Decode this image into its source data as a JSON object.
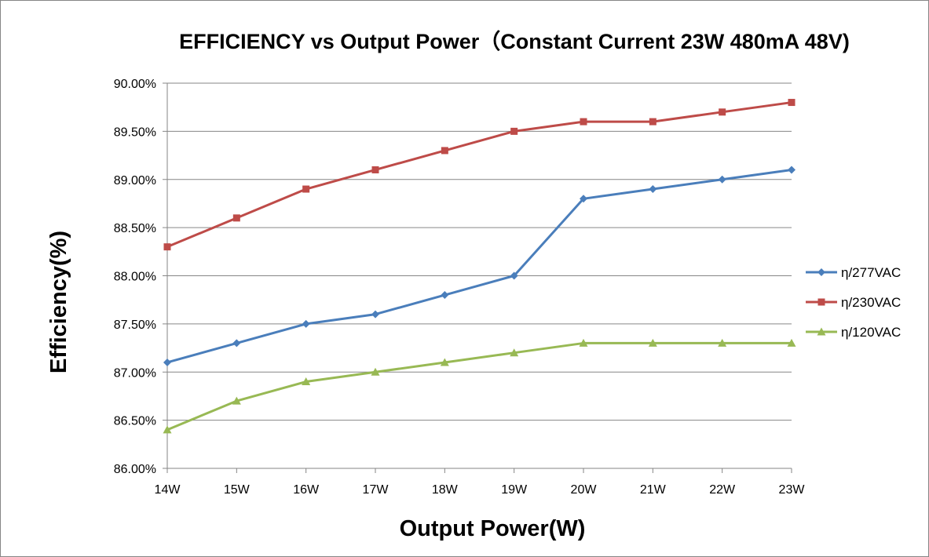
{
  "chart_data": {
    "type": "line",
    "title": "EFFICIENCY vs Output Power（Constant Current 23W 480mA 48V)",
    "xlabel": "Output Power(W)",
    "ylabel": "Efficiency(%)",
    "categories": [
      "14W",
      "15W",
      "16W",
      "17W",
      "18W",
      "19W",
      "20W",
      "21W",
      "22W",
      "23W"
    ],
    "ylim": [
      86.0,
      90.0
    ],
    "yticks": [
      86.0,
      86.5,
      87.0,
      87.5,
      88.0,
      88.5,
      89.0,
      89.5,
      90.0
    ],
    "ytick_labels": [
      "86.00%",
      "86.50%",
      "87.00%",
      "87.50%",
      "88.00%",
      "88.50%",
      "89.00%",
      "89.50%",
      "90.00%"
    ],
    "grid": "horizontal",
    "legend_position": "right",
    "series": [
      {
        "name": "η/277VAC",
        "color": "#4A7EBB",
        "marker": "diamond",
        "values": [
          87.1,
          87.3,
          87.5,
          87.6,
          87.8,
          88.0,
          88.8,
          88.9,
          89.0,
          89.1
        ]
      },
      {
        "name": "η/230VAC",
        "color": "#BE4B48",
        "marker": "square",
        "values": [
          88.3,
          88.6,
          88.9,
          89.1,
          89.3,
          89.5,
          89.6,
          89.6,
          89.7,
          89.8
        ]
      },
      {
        "name": "η/120VAC",
        "color": "#98B954",
        "marker": "triangle",
        "values": [
          86.4,
          86.7,
          86.9,
          87.0,
          87.1,
          87.2,
          87.3,
          87.3,
          87.3,
          87.3
        ]
      }
    ]
  }
}
